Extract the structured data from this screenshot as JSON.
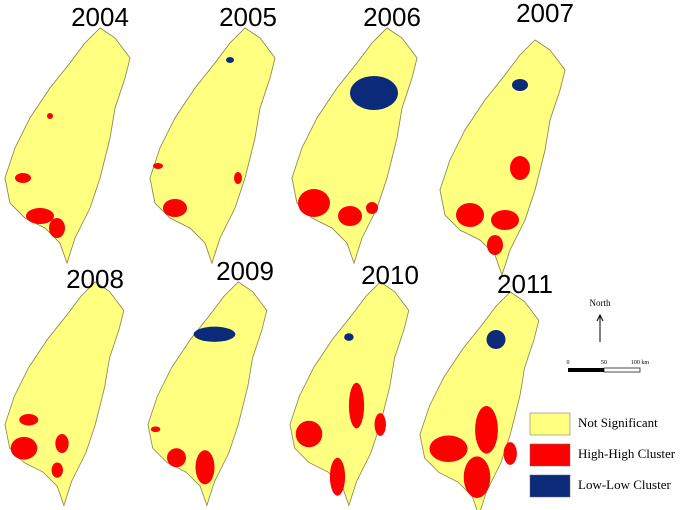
{
  "panels": [
    {
      "year": "2004"
    },
    {
      "year": "2005"
    },
    {
      "year": "2006"
    },
    {
      "year": "2007"
    },
    {
      "year": "2008"
    },
    {
      "year": "2009"
    },
    {
      "year": "2010"
    },
    {
      "year": "2011"
    }
  ],
  "north_arrow": {
    "label": "North"
  },
  "scale_bar": {
    "labels": [
      "0",
      "50",
      "100 km"
    ]
  },
  "legend": {
    "items": [
      {
        "label": "Not Significant",
        "color": "#ffff80"
      },
      {
        "label": "High-High Cluster",
        "color": "#ff0000"
      },
      {
        "label": "Low-Low Cluster",
        "color": "#0b2a7a"
      }
    ]
  }
}
